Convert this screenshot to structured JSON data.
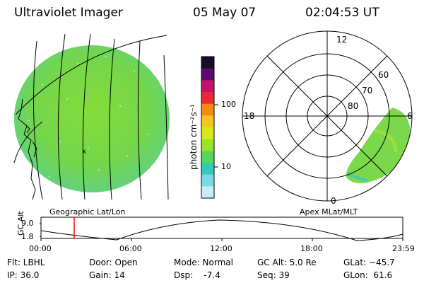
{
  "header": {
    "title": "Ultraviolet Imager",
    "date": "05 May 07",
    "time": "02:04:53 UT"
  },
  "left_panel": {
    "caption": "Geographic Lat/Lon",
    "marker": "x"
  },
  "colorbar": {
    "unit_label": "photon cm⁻²s⁻¹",
    "tick_upper": "100",
    "tick_lower": "10",
    "colors": [
      "#1a0b2e",
      "#5b0a6d",
      "#c2136b",
      "#e8283a",
      "#f58a13",
      "#f7c51f",
      "#d8e91a",
      "#9ae427",
      "#58d55c",
      "#36c9b9",
      "#7cd8e4",
      "#c4eef2"
    ]
  },
  "right_panel": {
    "caption": "Apex MLat/MLT",
    "mlt_labels": {
      "top": "12",
      "left": "18",
      "right": "6",
      "bottom": "0"
    },
    "lat_labels": [
      "60",
      "70",
      "80"
    ]
  },
  "altitude_plot": {
    "ylabel": "GC Alt",
    "ymax": "9.0",
    "ymin": "1.8",
    "x_ticks": [
      "00:00",
      "06:00",
      "12:00",
      "18:00",
      "23:59"
    ],
    "marker_color": "#ff0000"
  },
  "info": {
    "flt": "Flt: LBHL",
    "ip": "IP: 36.0",
    "door": "Door: Open",
    "gain": "Gain: 14",
    "mode": "Mode: Normal",
    "dsp": "Dsp:    -7.4",
    "gcalt": "GC Alt: 5.0 Re",
    "seq": "Seq: 39",
    "glat": "GLat: −45.7",
    "glon": "GLon:  61.6"
  }
}
